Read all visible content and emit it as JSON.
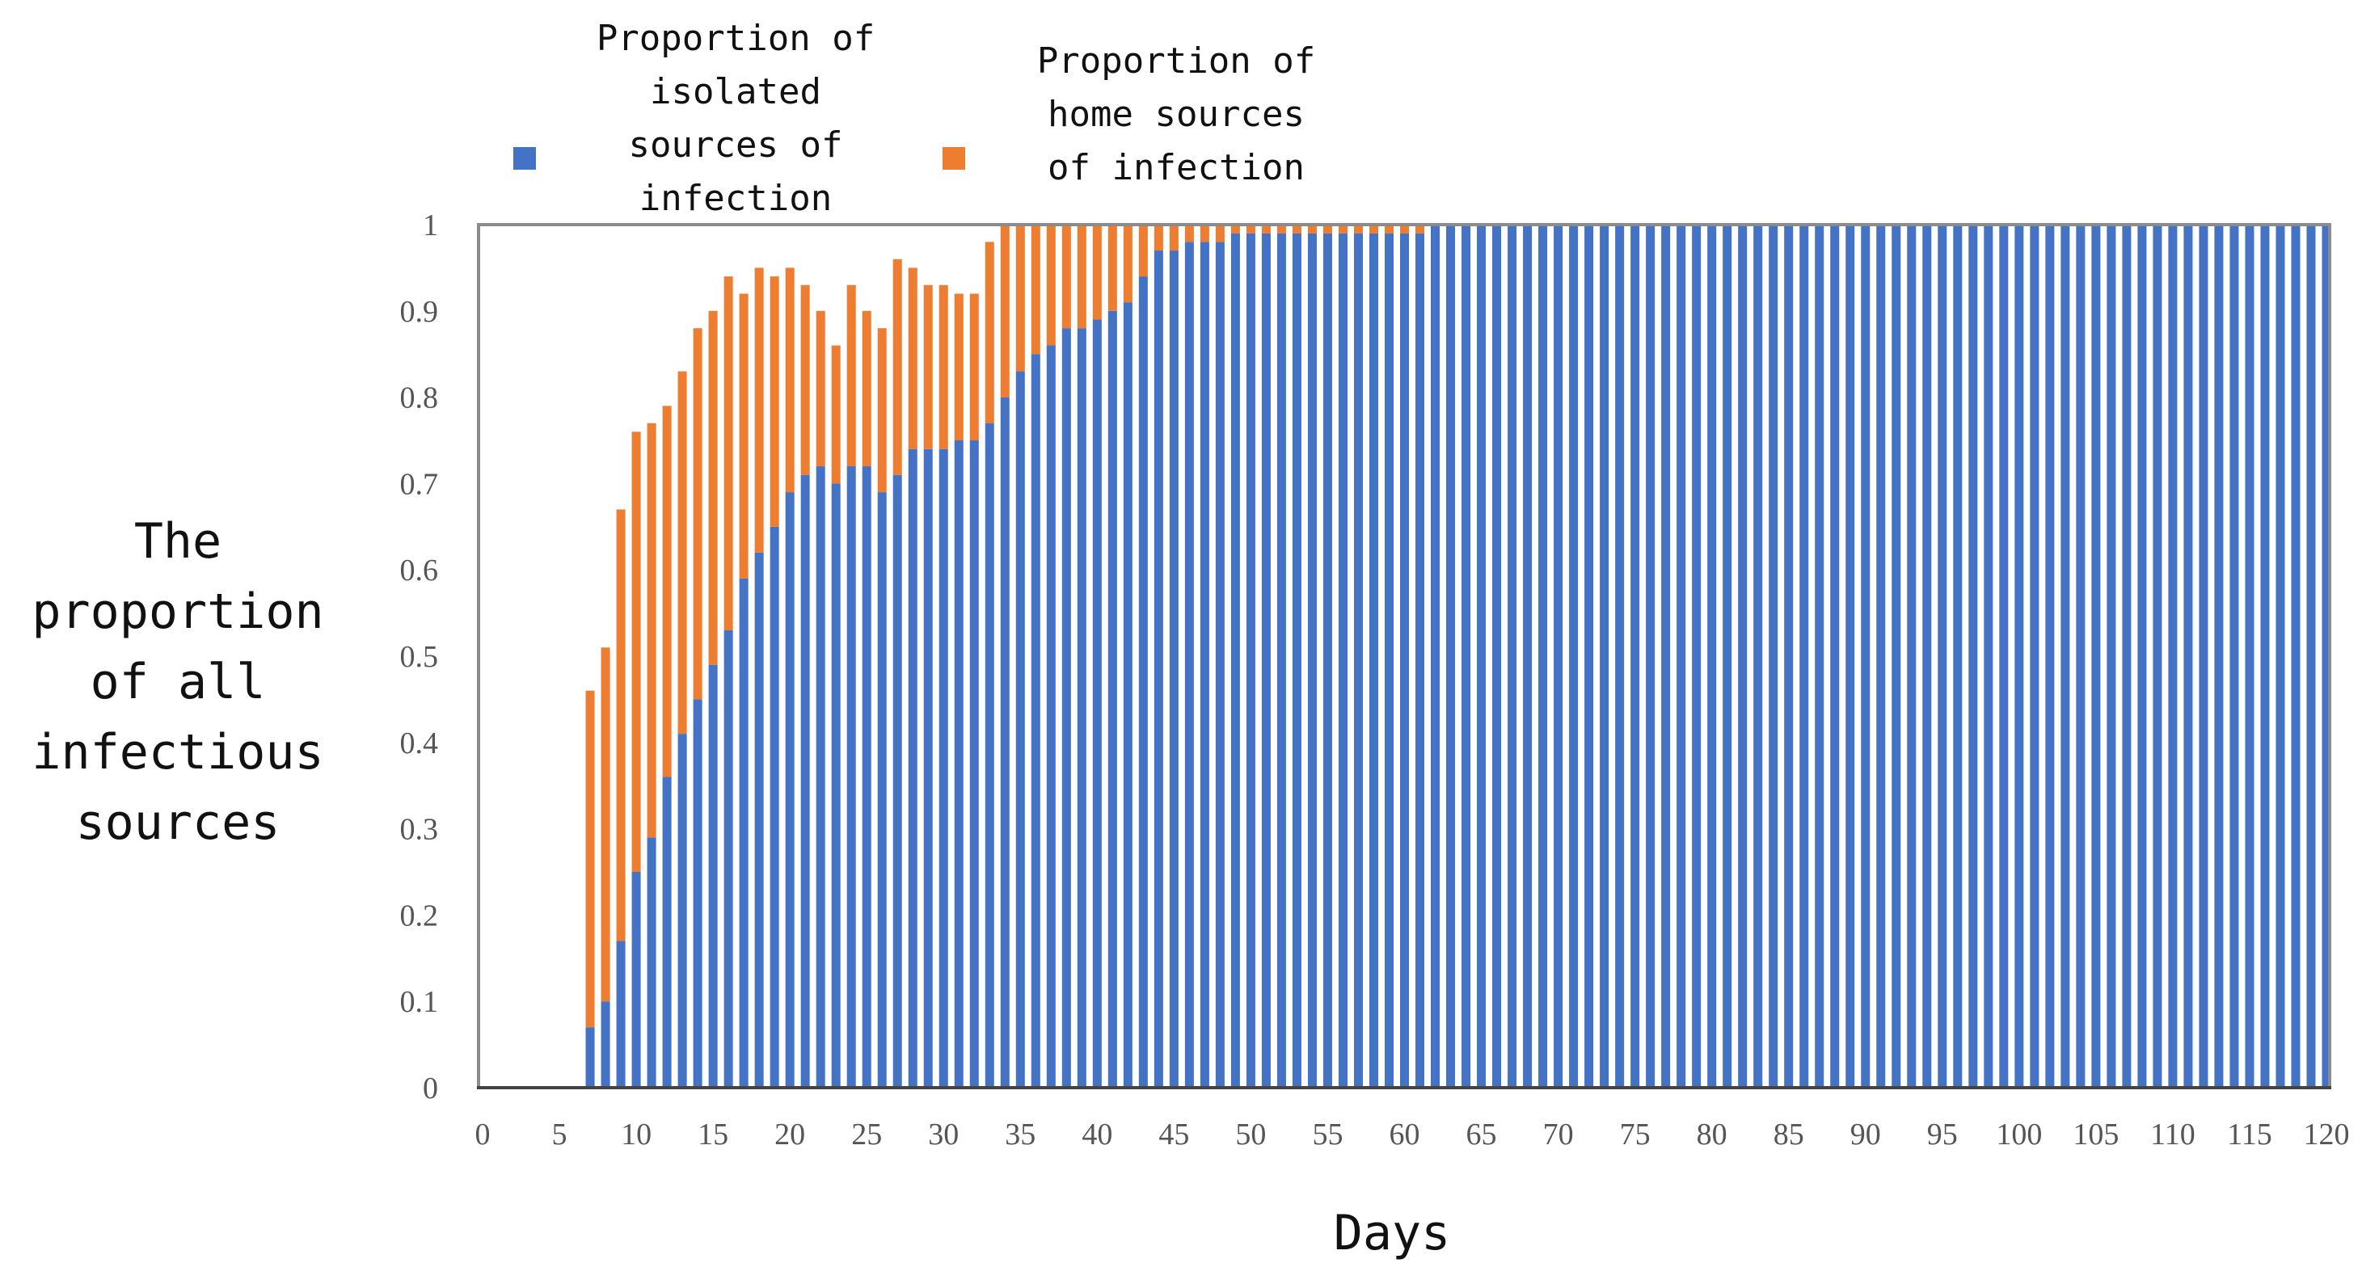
{
  "chart_data": {
    "type": "bar",
    "stacked": true,
    "title": "",
    "xlabel": "Days",
    "ylabel_lines": [
      "The",
      "proportion",
      "of all",
      "infectious",
      "sources"
    ],
    "ylim": [
      0,
      1
    ],
    "xlim": [
      0,
      120
    ],
    "yticks": [
      "0",
      "0.1",
      "0.2",
      "0.3",
      "0.4",
      "0.5",
      "0.6",
      "0.7",
      "0.8",
      "0.9",
      "1"
    ],
    "xticks": [
      "0",
      "5",
      "10",
      "15",
      "20",
      "25",
      "30",
      "35",
      "40",
      "45",
      "50",
      "55",
      "60",
      "65",
      "70",
      "75",
      "80",
      "85",
      "90",
      "95",
      "100",
      "105",
      "110",
      "115",
      "120"
    ],
    "legend": [
      {
        "name": "isolated",
        "lines": [
          "Proportion of",
          "isolated",
          "sources of",
          "infection"
        ],
        "color": "#4472C4"
      },
      {
        "name": "home",
        "lines": [
          "Proportion of",
          "home sources",
          "of infection"
        ],
        "color": "#ED7D31"
      }
    ],
    "days_start": 7,
    "series": [
      {
        "name": "Proportion of isolated sources of infection",
        "color": "#4472C4",
        "values": [
          0.07,
          0.1,
          0.17,
          0.25,
          0.29,
          0.36,
          0.41,
          0.45,
          0.49,
          0.53,
          0.59,
          0.62,
          0.65,
          0.69,
          0.71,
          0.72,
          0.7,
          0.72,
          0.72,
          0.69,
          0.71,
          0.74,
          0.74,
          0.74,
          0.75,
          0.75,
          0.77,
          0.8,
          0.83,
          0.85,
          0.86,
          0.88,
          0.88,
          0.89,
          0.9,
          0.91,
          0.94,
          0.97,
          0.97,
          0.98,
          0.98,
          0.98,
          0.99,
          0.99,
          0.99,
          0.99,
          0.99,
          0.99,
          0.99,
          0.99,
          0.99,
          0.99,
          0.99,
          0.99,
          0.99,
          1.0
        ]
      },
      {
        "name": "Proportion of home sources of infection",
        "color": "#ED7D31",
        "values": [
          0.39,
          0.41,
          0.5,
          0.51,
          0.48,
          0.43,
          0.42,
          0.43,
          0.41,
          0.41,
          0.33,
          0.33,
          0.29,
          0.26,
          0.22,
          0.18,
          0.16,
          0.21,
          0.18,
          0.19,
          0.25,
          0.21,
          0.19,
          0.19,
          0.17,
          0.17,
          0.21,
          0.2,
          0.17,
          0.15,
          0.14,
          0.12,
          0.12,
          0.11,
          0.1,
          0.09,
          0.06,
          0.03,
          0.03,
          0.02,
          0.02,
          0.02,
          0.01,
          0.01,
          0.01,
          0.01,
          0.01,
          0.01,
          0.01,
          0.01,
          0.01,
          0.01,
          0.01,
          0.01,
          0.01,
          0.0
        ],
        "note_tail_value": 0.0
      }
    ],
    "total_days": 120
  }
}
